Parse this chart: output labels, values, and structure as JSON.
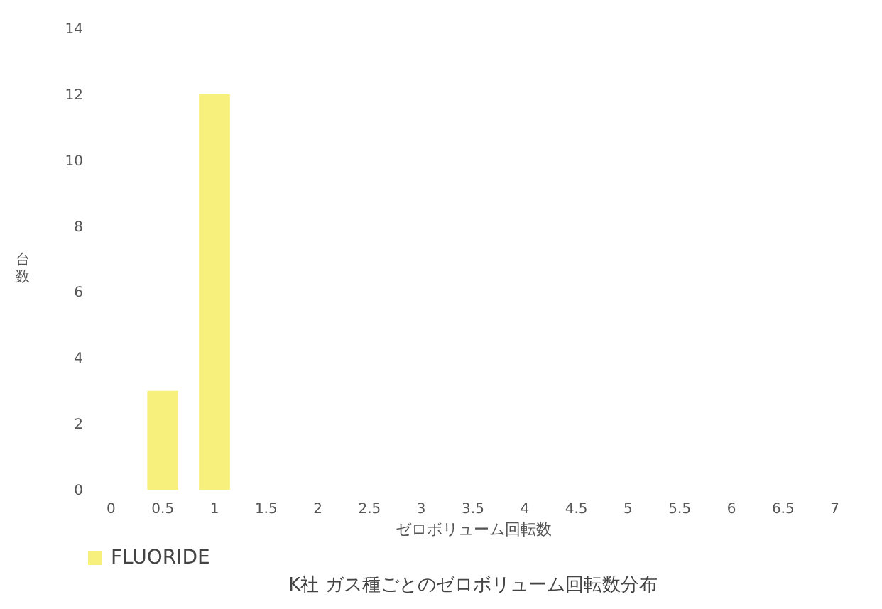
{
  "chart_data": {
    "type": "bar",
    "title": "K社 ガス種ごとのゼロボリューム回転数分布",
    "xlabel": "ゼロボリューム回転数",
    "ylabel": "台数",
    "categories": [
      "0",
      "0.5",
      "1",
      "1.5",
      "2",
      "2.5",
      "3",
      "3.5",
      "4",
      "4.5",
      "5",
      "5.5",
      "6",
      "6.5",
      "7"
    ],
    "series": [
      {
        "name": "FLUORIDE",
        "color": "#f8f07c",
        "values": [
          0,
          3,
          12,
          0,
          0,
          0,
          0,
          0,
          0,
          0,
          0,
          0,
          0,
          0,
          0
        ]
      }
    ],
    "ylim": [
      0,
      14
    ],
    "yticks": [
      0,
      2,
      4,
      6,
      8,
      10,
      12,
      14
    ],
    "grid": false,
    "legend": "bottom"
  }
}
